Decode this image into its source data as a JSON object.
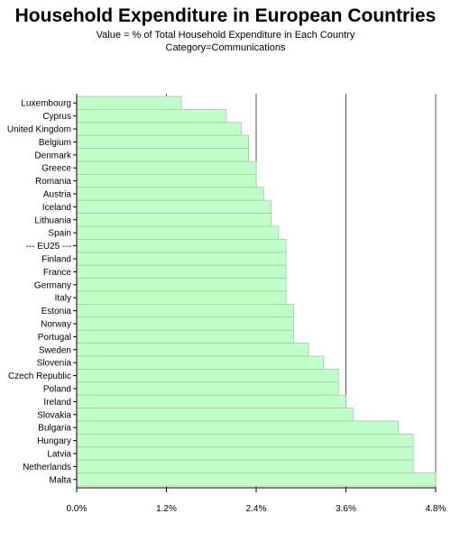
{
  "chart_data": {
    "type": "bar",
    "orientation": "horizontal",
    "title": "Household Expenditure in European Countries",
    "subtitle_lines": [
      "Value = % of Total Household Expenditure in Each Country",
      "Category=Communications"
    ],
    "categories": [
      "Luxembourg",
      "Cyprus",
      "United Kingdom",
      "Belgium",
      "Denmark",
      "Greece",
      "Romania",
      "Austria",
      "Iceland",
      "Lithuania",
      "Spain",
      "--- EU25 ---",
      "Finland",
      "France",
      "Germany",
      "Italy",
      "Estonia",
      "Norway",
      "Portugal",
      "Sweden",
      "Slovenia",
      "Czech Republic",
      "Poland",
      "Ireland",
      "Slovakia",
      "Bulgaria",
      "Hungary",
      "Latvia",
      "Netherlands",
      "Malta"
    ],
    "values": [
      1.4,
      2.0,
      2.2,
      2.3,
      2.3,
      2.4,
      2.4,
      2.5,
      2.6,
      2.6,
      2.7,
      2.8,
      2.8,
      2.8,
      2.8,
      2.8,
      2.9,
      2.9,
      2.9,
      3.1,
      3.3,
      3.5,
      3.5,
      3.6,
      3.7,
      4.3,
      4.5,
      4.5,
      4.5,
      4.8
    ],
    "xlim": [
      0,
      4.8
    ],
    "x_ticks": [
      0,
      1.2,
      2.4,
      3.6,
      4.8
    ],
    "x_tick_labels": [
      "0.0%",
      "1.2%",
      "2.4%",
      "3.6%",
      "4.8%"
    ],
    "grid": "vertical reference lines at major ticks",
    "bar_color": "#c0ffc8",
    "bar_edge_color": "#a8c8ac",
    "axis_color": "#000000"
  }
}
